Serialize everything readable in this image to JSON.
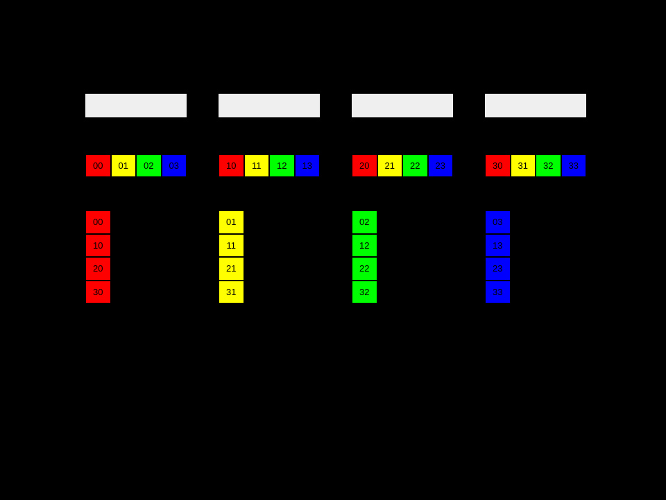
{
  "canvas": {
    "background": "#000000"
  },
  "colors": {
    "red": "#ff0000",
    "yellow": "#ffff00",
    "green": "#00ff00",
    "blue": "#0000ff",
    "header_box": "#efefef",
    "cell_text": "#000000",
    "cell_border": "#000000"
  },
  "groups": [
    {
      "row": [
        {
          "label": "00",
          "color": "red"
        },
        {
          "label": "01",
          "color": "yellow"
        },
        {
          "label": "02",
          "color": "green"
        },
        {
          "label": "03",
          "color": "blue"
        }
      ],
      "column_color": "red",
      "column": [
        {
          "label": "00"
        },
        {
          "label": "10"
        },
        {
          "label": "20"
        },
        {
          "label": "30"
        }
      ]
    },
    {
      "row": [
        {
          "label": "10",
          "color": "red"
        },
        {
          "label": "11",
          "color": "yellow"
        },
        {
          "label": "12",
          "color": "green"
        },
        {
          "label": "13",
          "color": "blue"
        }
      ],
      "column_color": "yellow",
      "column": [
        {
          "label": "01"
        },
        {
          "label": "11"
        },
        {
          "label": "21"
        },
        {
          "label": "31"
        }
      ]
    },
    {
      "row": [
        {
          "label": "20",
          "color": "red"
        },
        {
          "label": "21",
          "color": "yellow"
        },
        {
          "label": "22",
          "color": "green"
        },
        {
          "label": "23",
          "color": "blue"
        }
      ],
      "column_color": "green",
      "column": [
        {
          "label": "02"
        },
        {
          "label": "12"
        },
        {
          "label": "22"
        },
        {
          "label": "32"
        }
      ]
    },
    {
      "row": [
        {
          "label": "30",
          "color": "red"
        },
        {
          "label": "31",
          "color": "yellow"
        },
        {
          "label": "32",
          "color": "green"
        },
        {
          "label": "33",
          "color": "blue"
        }
      ],
      "column_color": "blue",
      "column": [
        {
          "label": "03"
        },
        {
          "label": "13"
        },
        {
          "label": "23"
        },
        {
          "label": "33"
        }
      ]
    }
  ]
}
